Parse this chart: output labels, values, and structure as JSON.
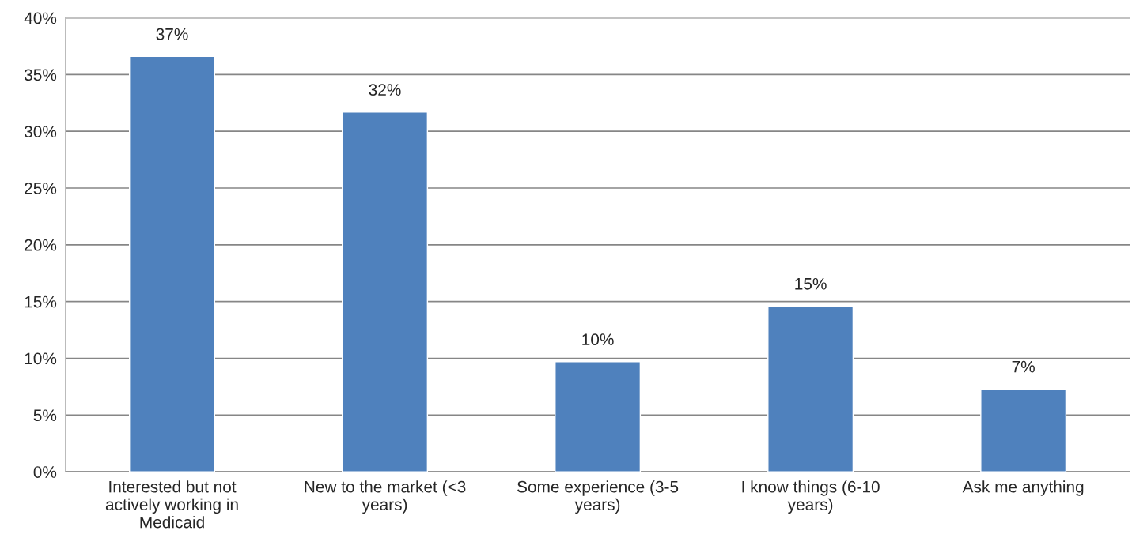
{
  "chart_data": {
    "type": "bar",
    "categories": [
      "Interested but not actively working in Medicaid",
      "New to the market (<3 years)",
      "Some experience (3-5 years)",
      "I know things (6-10 years)",
      "Ask me anything"
    ],
    "values": [
      36.6,
      31.7,
      9.7,
      14.6,
      7.3
    ],
    "value_labels": [
      "37%",
      "32%",
      "10%",
      "15%",
      "7%"
    ],
    "color": "#4f81bd",
    "ylim": [
      0,
      40
    ],
    "yticks": [
      {
        "value": 0,
        "label": "0%"
      },
      {
        "value": 5,
        "label": "5%"
      },
      {
        "value": 10,
        "label": "10%"
      },
      {
        "value": 15,
        "label": "15%"
      },
      {
        "value": 20,
        "label": "20%"
      },
      {
        "value": 25,
        "label": "25%"
      },
      {
        "value": 30,
        "label": "30%"
      },
      {
        "value": 35,
        "label": "35%"
      },
      {
        "value": 40,
        "label": "40%"
      }
    ],
    "grid": "y",
    "legend": false
  }
}
